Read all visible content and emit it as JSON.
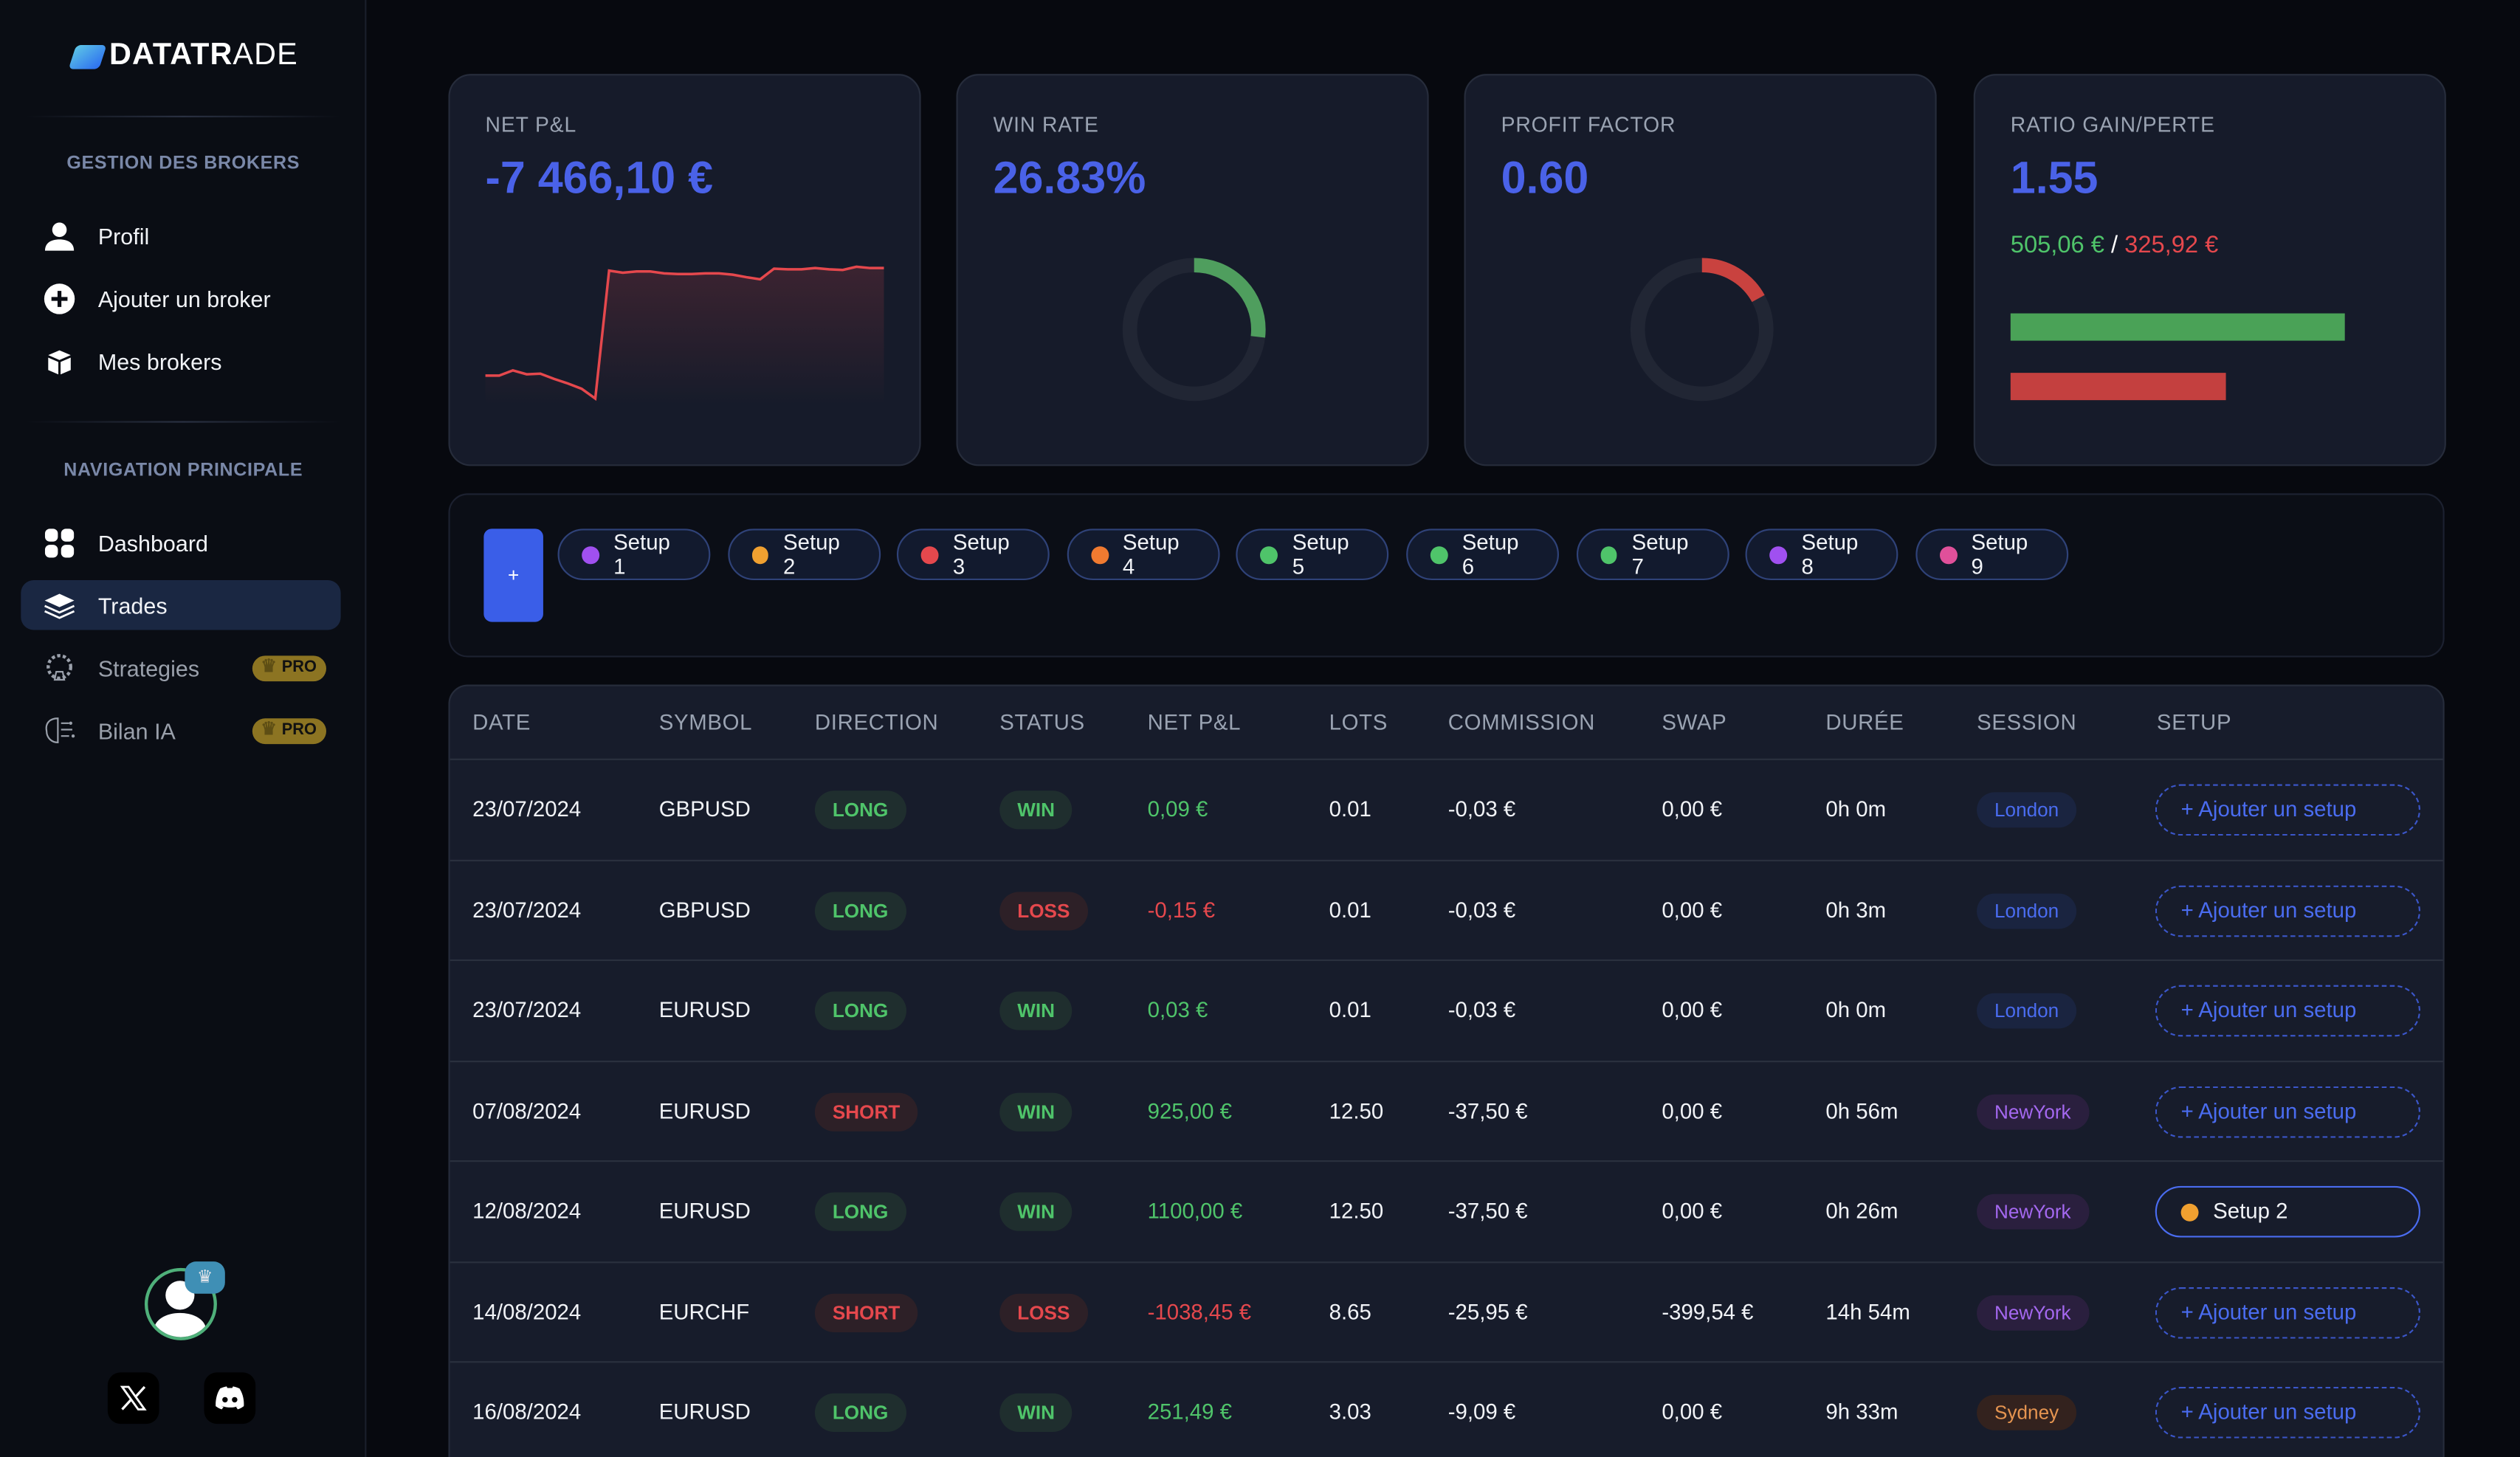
{
  "brand": {
    "name_bold": "DATATR",
    "name_light": "ADE"
  },
  "sidebar": {
    "section1": "GESTION DES BROKERS",
    "section2": "NAVIGATION PRINCIPALE",
    "items": [
      {
        "label": "Profil",
        "icon": "user-icon"
      },
      {
        "label": "Ajouter un broker",
        "icon": "plus-circle-icon"
      },
      {
        "label": "Mes brokers",
        "icon": "box-icon"
      },
      {
        "label": "Dashboard",
        "icon": "grid-icon"
      },
      {
        "label": "Trades",
        "icon": "layers-icon",
        "active": true
      },
      {
        "label": "Strategies",
        "icon": "chess-gear-icon",
        "badge": "PRO"
      },
      {
        "label": "Bilan IA",
        "icon": "ai-brain-icon",
        "badge": "PRO"
      }
    ]
  },
  "cards": {
    "net_pnl": {
      "label": "NET P&L",
      "value": "-7 466,10 €"
    },
    "win_rate": {
      "label": "WIN RATE",
      "value": "26.83%",
      "fraction": 0.2683
    },
    "profit_factor": {
      "label": "PROFIT FACTOR",
      "value": "0.60",
      "fraction": 0.17
    },
    "ratio": {
      "label": "RATIO GAIN/PERTE",
      "value": "1.55",
      "gain": "505,06 €",
      "sep": " / ",
      "loss": "325,92 €",
      "gain_value": 505.06,
      "loss_value": 325.92
    }
  },
  "chart_data": {
    "type": "area",
    "values": [
      -60,
      -60,
      -52,
      -58,
      -57,
      -65,
      -72,
      -80,
      -95,
      100,
      97,
      99,
      99,
      96,
      95,
      95,
      96,
      96,
      94,
      90,
      87,
      103,
      102,
      102,
      104,
      102,
      101,
      106,
      104,
      104
    ]
  },
  "colors": {
    "accent": "#4a62e8",
    "green": "#4fc46a",
    "red": "#e5484d"
  },
  "setups": {
    "add_label": "+",
    "items": [
      {
        "label": "Setup 1",
        "color": "#a050f0"
      },
      {
        "label": "Setup 2",
        "color": "#f0a030"
      },
      {
        "label": "Setup 3",
        "color": "#e5484d"
      },
      {
        "label": "Setup 4",
        "color": "#f07a30"
      },
      {
        "label": "Setup 5",
        "color": "#4fc46a"
      },
      {
        "label": "Setup 6",
        "color": "#4fc46a"
      },
      {
        "label": "Setup 7",
        "color": "#4fc46a"
      },
      {
        "label": "Setup 8",
        "color": "#a050f0"
      },
      {
        "label": "Setup 9",
        "color": "#e0509a"
      }
    ]
  },
  "table": {
    "headers": [
      "DATE",
      "SYMBOL",
      "DIRECTION",
      "STATUS",
      "NET P&L",
      "LOTS",
      "COMMISSION",
      "SWAP",
      "DURÉE",
      "SESSION",
      "SETUP"
    ],
    "add_setup_label": "+ Ajouter un setup",
    "rows": [
      {
        "date": "23/07/2024",
        "symbol": "GBPUSD",
        "direction": "LONG",
        "status": "WIN",
        "pnl": "0,09 €",
        "lots": "0.01",
        "commission": "-0,03 €",
        "swap": "0,00 €",
        "duration": "0h 0m",
        "session": "London",
        "setup": ""
      },
      {
        "date": "23/07/2024",
        "symbol": "GBPUSD",
        "direction": "LONG",
        "status": "LOSS",
        "pnl": "-0,15 €",
        "lots": "0.01",
        "commission": "-0,03 €",
        "swap": "0,00 €",
        "duration": "0h 3m",
        "session": "London",
        "setup": ""
      },
      {
        "date": "23/07/2024",
        "symbol": "EURUSD",
        "direction": "LONG",
        "status": "WIN",
        "pnl": "0,03 €",
        "lots": "0.01",
        "commission": "-0,03 €",
        "swap": "0,00 €",
        "duration": "0h 0m",
        "session": "London",
        "setup": ""
      },
      {
        "date": "07/08/2024",
        "symbol": "EURUSD",
        "direction": "SHORT",
        "status": "WIN",
        "pnl": "925,00 €",
        "lots": "12.50",
        "commission": "-37,50 €",
        "swap": "0,00 €",
        "duration": "0h 56m",
        "session": "NewYork",
        "setup": ""
      },
      {
        "date": "12/08/2024",
        "symbol": "EURUSD",
        "direction": "LONG",
        "status": "WIN",
        "pnl": "1100,00 €",
        "lots": "12.50",
        "commission": "-37,50 €",
        "swap": "0,00 €",
        "duration": "0h 26m",
        "session": "NewYork",
        "setup": "Setup 2"
      },
      {
        "date": "14/08/2024",
        "symbol": "EURCHF",
        "direction": "SHORT",
        "status": "LOSS",
        "pnl": "-1038,45 €",
        "lots": "8.65",
        "commission": "-25,95 €",
        "swap": "-399,54 €",
        "duration": "14h 54m",
        "session": "NewYork",
        "setup": ""
      },
      {
        "date": "16/08/2024",
        "symbol": "EURUSD",
        "direction": "LONG",
        "status": "WIN",
        "pnl": "251,49 €",
        "lots": "3.03",
        "commission": "-9,09 €",
        "swap": "0,00 €",
        "duration": "9h 33m",
        "session": "Sydney",
        "setup": ""
      }
    ]
  }
}
